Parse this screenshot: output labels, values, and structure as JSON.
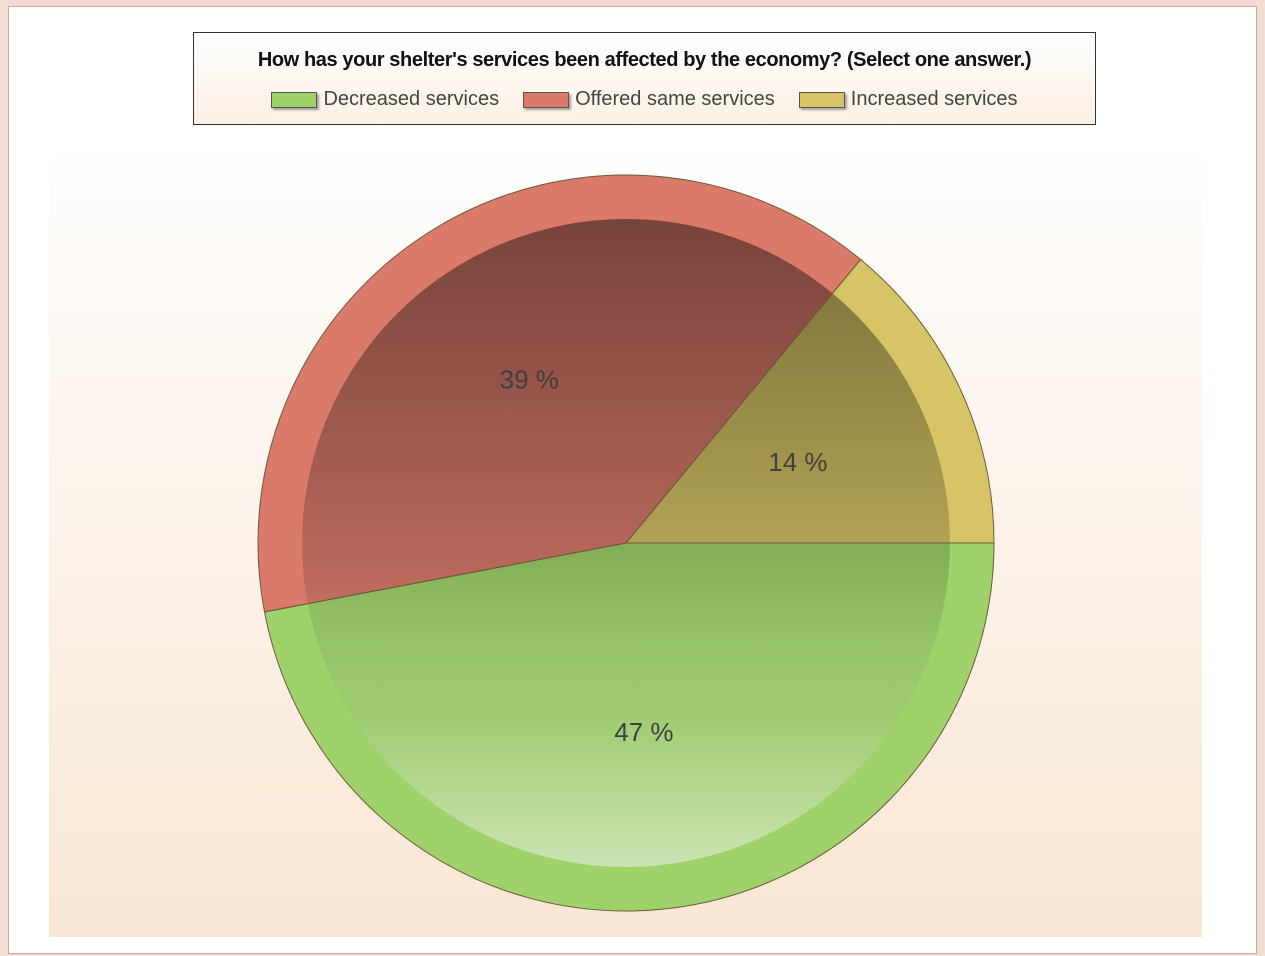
{
  "chart_data": {
    "type": "pie",
    "title": "How has your shelter's services been affected by the economy? (Select one answer.)",
    "legend_placement": "top",
    "slices": [
      {
        "name": "Decreased services",
        "value": 47,
        "label": "47 %",
        "color": "#9fd26a"
      },
      {
        "name": "Offered same services",
        "value": 39,
        "label": "39 %",
        "color": "#d97a6a"
      },
      {
        "name": "Increased services",
        "value": 14,
        "label": "14 %",
        "color": "#d7c466"
      }
    ]
  }
}
